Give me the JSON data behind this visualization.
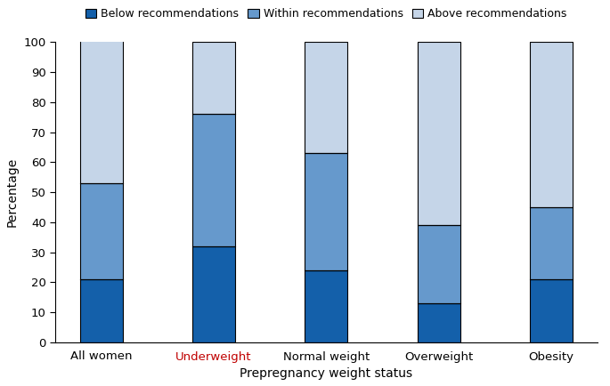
{
  "categories": [
    "All women",
    "Underweight",
    "Normal weight",
    "Overweight",
    "Obesity"
  ],
  "below": [
    21,
    32,
    24,
    13,
    21
  ],
  "within": [
    32,
    44,
    39,
    26,
    24
  ],
  "above": [
    48,
    24,
    37,
    61,
    55
  ],
  "color_below": "#1460AA",
  "color_within": "#6699CC",
  "color_above": "#C5D5E8",
  "xlabel": "Prepregnancy weight status",
  "ylabel": "Percentage",
  "ylim": [
    0,
    100
  ],
  "yticks": [
    0,
    10,
    20,
    30,
    40,
    50,
    60,
    70,
    80,
    90,
    100
  ],
  "legend_labels": [
    "Below recommendations",
    "Within recommendations",
    "Above recommendations"
  ],
  "bar_width": 0.38,
  "underweight_color": "#C00000",
  "bar_edgecolor": "black",
  "bar_linewidth": 0.8
}
